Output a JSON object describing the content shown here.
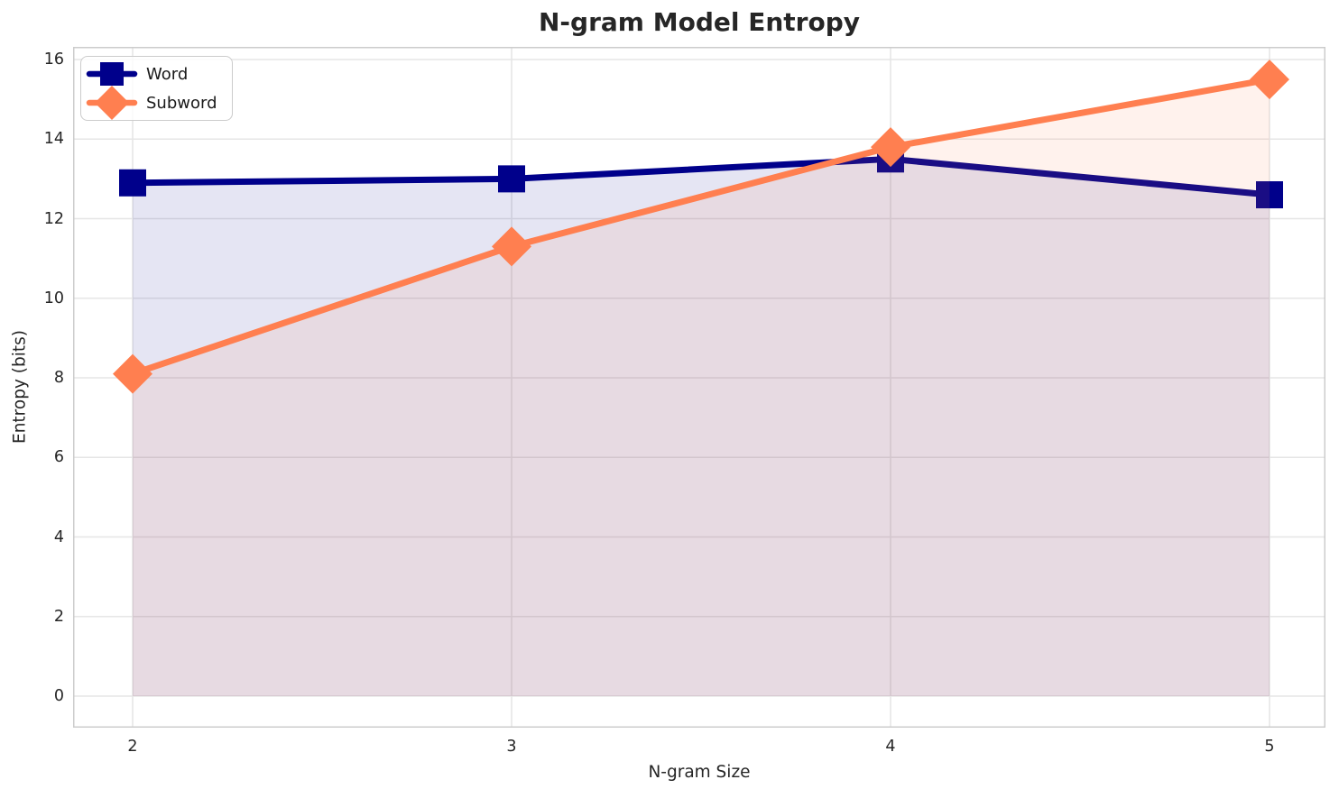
{
  "chart_data": {
    "type": "line",
    "title": "N-gram Model Entropy",
    "xlabel": "N-gram Size",
    "ylabel": "Entropy (bits)",
    "x": [
      2,
      3,
      4,
      5
    ],
    "xticks": [
      2,
      3,
      4,
      5
    ],
    "yticks": [
      0,
      2,
      4,
      6,
      8,
      10,
      12,
      14,
      16
    ],
    "xlim": [
      1.84,
      5.15
    ],
    "ylim": [
      -0.8,
      16.3
    ],
    "grid": true,
    "legend_position": "upper left",
    "area_fill": true,
    "series": [
      {
        "name": "Word",
        "marker": "square",
        "color": "#00008B",
        "fill_opacity": 0.1,
        "values": [
          12.9,
          13.0,
          13.5,
          12.6
        ]
      },
      {
        "name": "Subword",
        "marker": "diamond",
        "color": "#FF7F50",
        "fill_opacity": 0.1,
        "values": [
          8.1,
          11.3,
          13.8,
          15.5
        ]
      }
    ],
    "colors": {
      "grid": "#e6e6e6",
      "spine": "#cccccc",
      "text": "#262626"
    }
  }
}
